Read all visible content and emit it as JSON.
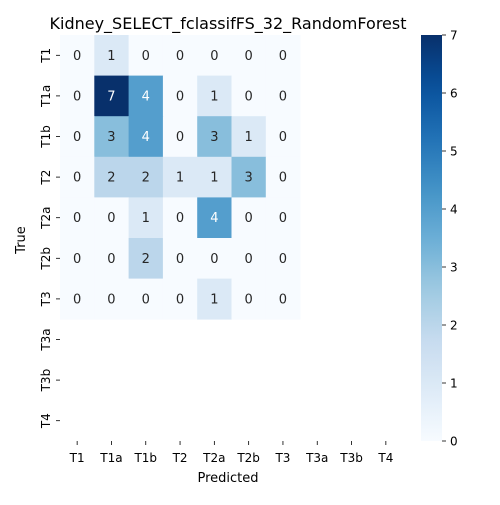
{
  "chart_data": {
    "type": "heatmap",
    "title": "Kidney_SELECT_fclassifFS_32_RandomForest",
    "xlabel": "Predicted",
    "ylabel": "True",
    "x_categories": [
      "T1",
      "T1a",
      "T1b",
      "T2",
      "T2a",
      "T2b",
      "T3",
      "T3a",
      "T3b",
      "T4"
    ],
    "y_categories": [
      "T1",
      "T1a",
      "T1b",
      "T2",
      "T2a",
      "T2b",
      "T3",
      "T3a",
      "T3b",
      "T4"
    ],
    "values": [
      [
        0,
        1,
        0,
        0,
        0,
        0,
        0,
        null,
        null,
        null
      ],
      [
        0,
        7,
        4,
        0,
        1,
        0,
        0,
        null,
        null,
        null
      ],
      [
        0,
        3,
        4,
        0,
        3,
        1,
        0,
        null,
        null,
        null
      ],
      [
        0,
        2,
        2,
        1,
        1,
        3,
        0,
        null,
        null,
        null
      ],
      [
        0,
        0,
        1,
        0,
        4,
        0,
        0,
        null,
        null,
        null
      ],
      [
        0,
        0,
        2,
        0,
        0,
        0,
        0,
        null,
        null,
        null
      ],
      [
        0,
        0,
        0,
        0,
        1,
        0,
        0,
        null,
        null,
        null
      ],
      [
        null,
        null,
        null,
        null,
        null,
        null,
        null,
        null,
        null,
        null
      ],
      [
        null,
        null,
        null,
        null,
        null,
        null,
        null,
        null,
        null,
        null
      ],
      [
        null,
        null,
        null,
        null,
        null,
        null,
        null,
        null,
        null,
        null
      ]
    ],
    "colorbar": {
      "min": 0,
      "max": 7,
      "ticks": [
        0,
        1,
        2,
        3,
        4,
        5,
        6,
        7
      ],
      "colormap": "Blues"
    },
    "colors": {
      "low": "#f7fbff",
      "high": "#08306b",
      "text_dark": "#262626",
      "text_light": "#ffffff"
    }
  }
}
